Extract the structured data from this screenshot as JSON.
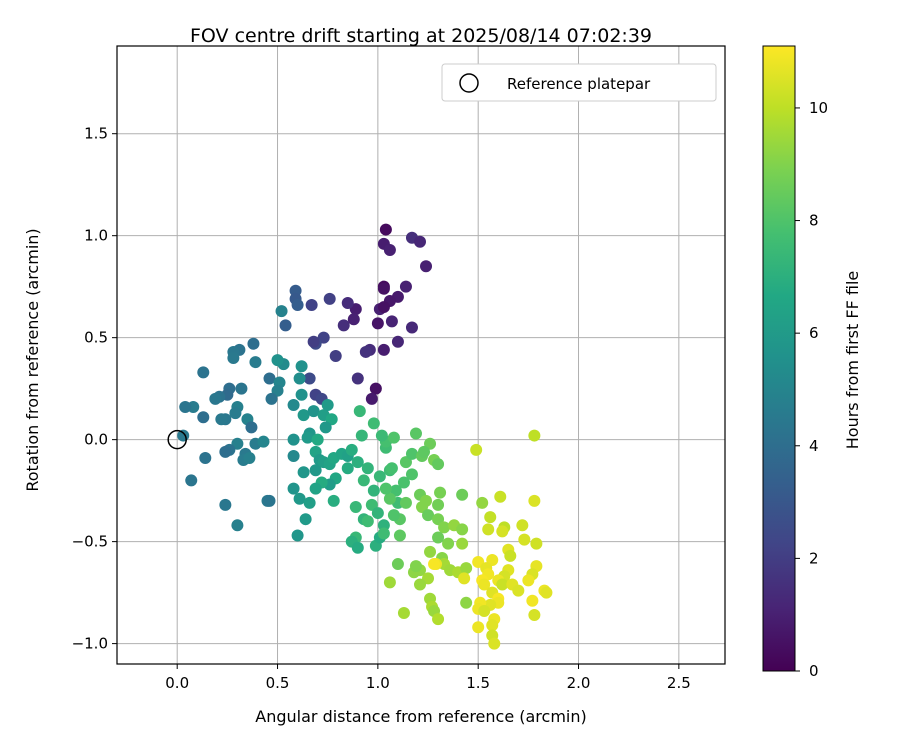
{
  "chart_data": {
    "type": "scatter",
    "title": "FOV centre drift starting at 2025/08/14 07:02:39",
    "xlabel": "Angular distance from reference (arcmin)",
    "ylabel": "Rotation from reference (arcmin)",
    "xlim": [
      -0.3,
      2.73
    ],
    "ylim": [
      -1.1,
      1.93
    ],
    "xticks": [
      0.0,
      0.5,
      1.0,
      1.5,
      2.0,
      2.5
    ],
    "xtick_labels": [
      "0.0",
      "0.5",
      "1.0",
      "1.5",
      "2.0",
      "2.5"
    ],
    "yticks": [
      -1.0,
      -0.5,
      0.0,
      0.5,
      1.0,
      1.5
    ],
    "ytick_labels": [
      "−1.0",
      "−0.5",
      "0.0",
      "0.5",
      "1.0",
      "1.5"
    ],
    "grid": true,
    "legend": {
      "placement": "top-right",
      "entries": [
        "Reference platepar"
      ]
    },
    "reference_point": {
      "x": 0.0,
      "y": 0.0,
      "marker": "open-circle"
    },
    "colorbar": {
      "label": "Hours from first FF file",
      "range": [
        0,
        11.1
      ],
      "ticks": [
        0,
        2,
        4,
        6,
        8,
        10
      ],
      "tick_labels": [
        "0",
        "2",
        "4",
        "6",
        "8",
        "10"
      ],
      "colormap": "viridis"
    },
    "points": [
      {
        "x": 1.04,
        "y": 1.03,
        "h": 0.3
      },
      {
        "x": 1.03,
        "y": 0.96,
        "h": 0.9
      },
      {
        "x": 1.06,
        "y": 0.93,
        "h": 1.0
      },
      {
        "x": 1.17,
        "y": 0.99,
        "h": 1.5
      },
      {
        "x": 1.21,
        "y": 0.97,
        "h": 1.2
      },
      {
        "x": 1.24,
        "y": 0.85,
        "h": 1.0
      },
      {
        "x": 1.03,
        "y": 0.75,
        "h": 0.3
      },
      {
        "x": 1.03,
        "y": 0.74,
        "h": 0.5
      },
      {
        "x": 1.1,
        "y": 0.7,
        "h": 0.8
      },
      {
        "x": 1.14,
        "y": 0.75,
        "h": 1.0
      },
      {
        "x": 1.06,
        "y": 0.68,
        "h": 0.7
      },
      {
        "x": 1.01,
        "y": 0.64,
        "h": 1.0
      },
      {
        "x": 1.03,
        "y": 0.65,
        "h": 0.5
      },
      {
        "x": 1.0,
        "y": 0.57,
        "h": 0.6
      },
      {
        "x": 1.07,
        "y": 0.58,
        "h": 1.1
      },
      {
        "x": 1.17,
        "y": 0.55,
        "h": 1.3
      },
      {
        "x": 1.1,
        "y": 0.48,
        "h": 1.2
      },
      {
        "x": 0.96,
        "y": 0.44,
        "h": 1.4
      },
      {
        "x": 0.94,
        "y": 0.43,
        "h": 1.6
      },
      {
        "x": 1.03,
        "y": 0.44,
        "h": 0.9
      },
      {
        "x": 0.89,
        "y": 0.64,
        "h": 0.9
      },
      {
        "x": 0.85,
        "y": 0.67,
        "h": 1.4
      },
      {
        "x": 0.83,
        "y": 0.56,
        "h": 1.5
      },
      {
        "x": 0.88,
        "y": 0.59,
        "h": 1.0
      },
      {
        "x": 0.99,
        "y": 0.25,
        "h": 0.5
      },
      {
        "x": 0.97,
        "y": 0.2,
        "h": 0.8
      },
      {
        "x": 0.9,
        "y": 0.3,
        "h": 1.6
      },
      {
        "x": 0.76,
        "y": 0.69,
        "h": 2.1
      },
      {
        "x": 0.67,
        "y": 0.66,
        "h": 2.2
      },
      {
        "x": 0.73,
        "y": 0.5,
        "h": 2.2
      },
      {
        "x": 0.69,
        "y": 0.47,
        "h": 2.5
      },
      {
        "x": 0.68,
        "y": 0.48,
        "h": 2.0
      },
      {
        "x": 0.79,
        "y": 0.41,
        "h": 2.0
      },
      {
        "x": 0.59,
        "y": 0.73,
        "h": 3.2
      },
      {
        "x": 0.59,
        "y": 0.69,
        "h": 3.1
      },
      {
        "x": 0.6,
        "y": 0.66,
        "h": 3.3
      },
      {
        "x": 0.54,
        "y": 0.56,
        "h": 3.3
      },
      {
        "x": 0.52,
        "y": 0.63,
        "h": 4.9
      },
      {
        "x": 0.66,
        "y": 0.3,
        "h": 2.5
      },
      {
        "x": 0.69,
        "y": 0.22,
        "h": 2.2
      },
      {
        "x": 0.72,
        "y": 0.2,
        "h": 2.4
      },
      {
        "x": 0.38,
        "y": 0.47,
        "h": 4.0
      },
      {
        "x": 0.31,
        "y": 0.44,
        "h": 4.2
      },
      {
        "x": 0.28,
        "y": 0.43,
        "h": 4.4
      },
      {
        "x": 0.28,
        "y": 0.4,
        "h": 4.5
      },
      {
        "x": 0.39,
        "y": 0.38,
        "h": 4.6
      },
      {
        "x": 0.46,
        "y": 0.3,
        "h": 4.0
      },
      {
        "x": 0.51,
        "y": 0.28,
        "h": 5.0
      },
      {
        "x": 0.5,
        "y": 0.24,
        "h": 4.8
      },
      {
        "x": 0.47,
        "y": 0.2,
        "h": 4.2
      },
      {
        "x": 0.32,
        "y": 0.25,
        "h": 4.3
      },
      {
        "x": 0.26,
        "y": 0.25,
        "h": 4.0
      },
      {
        "x": 0.25,
        "y": 0.22,
        "h": 3.8
      },
      {
        "x": 0.21,
        "y": 0.21,
        "h": 4.2
      },
      {
        "x": 0.19,
        "y": 0.2,
        "h": 4.4
      },
      {
        "x": 0.13,
        "y": 0.33,
        "h": 4.2
      },
      {
        "x": 0.08,
        "y": 0.16,
        "h": 4.6
      },
      {
        "x": 0.04,
        "y": 0.16,
        "h": 4.3
      },
      {
        "x": 0.13,
        "y": 0.11,
        "h": 4.0
      },
      {
        "x": 0.03,
        "y": 0.02,
        "h": 4.5
      },
      {
        "x": 0.24,
        "y": 0.1,
        "h": 4.4
      },
      {
        "x": 0.3,
        "y": 0.16,
        "h": 4.8
      },
      {
        "x": 0.29,
        "y": 0.13,
        "h": 4.6
      },
      {
        "x": 0.35,
        "y": 0.1,
        "h": 4.9
      },
      {
        "x": 0.37,
        "y": 0.06,
        "h": 4.0
      },
      {
        "x": 0.3,
        "y": -0.02,
        "h": 4.8
      },
      {
        "x": 0.34,
        "y": -0.07,
        "h": 4.5
      },
      {
        "x": 0.26,
        "y": -0.05,
        "h": 4.2
      },
      {
        "x": 0.24,
        "y": -0.06,
        "h": 4.0
      },
      {
        "x": 0.33,
        "y": -0.1,
        "h": 4.6
      },
      {
        "x": 0.36,
        "y": -0.09,
        "h": 4.8
      },
      {
        "x": 0.39,
        "y": -0.02,
        "h": 4.6
      },
      {
        "x": 0.43,
        "y": -0.01,
        "h": 5.0
      },
      {
        "x": 0.14,
        "y": -0.09,
        "h": 4.2
      },
      {
        "x": 0.07,
        "y": -0.2,
        "h": 4.3
      },
      {
        "x": 0.24,
        "y": -0.32,
        "h": 4.4
      },
      {
        "x": 0.3,
        "y": -0.42,
        "h": 4.8
      },
      {
        "x": 0.45,
        "y": -0.3,
        "h": 4.5
      },
      {
        "x": 0.46,
        "y": -0.3,
        "h": 4.3
      },
      {
        "x": 0.22,
        "y": 0.1,
        "h": 4.5
      },
      {
        "x": 0.53,
        "y": 0.37,
        "h": 5.3
      },
      {
        "x": 0.5,
        "y": 0.39,
        "h": 5.6
      },
      {
        "x": 0.62,
        "y": 0.36,
        "h": 5.6
      },
      {
        "x": 0.61,
        "y": 0.3,
        "h": 5.4
      },
      {
        "x": 0.58,
        "y": 0.17,
        "h": 5.2
      },
      {
        "x": 0.62,
        "y": 0.22,
        "h": 5.6
      },
      {
        "x": 0.63,
        "y": 0.12,
        "h": 5.9
      },
      {
        "x": 0.68,
        "y": 0.14,
        "h": 5.7
      },
      {
        "x": 0.73,
        "y": 0.12,
        "h": 6.2
      },
      {
        "x": 0.75,
        "y": 0.17,
        "h": 6.0
      },
      {
        "x": 0.77,
        "y": 0.1,
        "h": 6.6
      },
      {
        "x": 0.74,
        "y": 0.06,
        "h": 5.9
      },
      {
        "x": 0.66,
        "y": 0.03,
        "h": 5.8
      },
      {
        "x": 0.65,
        "y": 0.01,
        "h": 6.0
      },
      {
        "x": 0.7,
        "y": 0.0,
        "h": 6.7
      },
      {
        "x": 0.58,
        "y": 0.0,
        "h": 5.6
      },
      {
        "x": 0.58,
        "y": -0.08,
        "h": 5.2
      },
      {
        "x": 0.63,
        "y": -0.16,
        "h": 5.8
      },
      {
        "x": 0.69,
        "y": -0.06,
        "h": 6.4
      },
      {
        "x": 0.71,
        "y": -0.1,
        "h": 6.0
      },
      {
        "x": 0.69,
        "y": -0.15,
        "h": 5.9
      },
      {
        "x": 0.73,
        "y": -0.11,
        "h": 6.2
      },
      {
        "x": 0.76,
        "y": -0.12,
        "h": 6.4
      },
      {
        "x": 0.78,
        "y": -0.09,
        "h": 6.6
      },
      {
        "x": 0.82,
        "y": -0.07,
        "h": 6.5
      },
      {
        "x": 0.85,
        "y": -0.08,
        "h": 6.3
      },
      {
        "x": 0.79,
        "y": -0.19,
        "h": 6.6
      },
      {
        "x": 0.76,
        "y": -0.22,
        "h": 6.1
      },
      {
        "x": 0.72,
        "y": -0.21,
        "h": 6.8
      },
      {
        "x": 0.69,
        "y": -0.24,
        "h": 6.4
      },
      {
        "x": 0.58,
        "y": -0.24,
        "h": 5.7
      },
      {
        "x": 0.61,
        "y": -0.29,
        "h": 5.9
      },
      {
        "x": 0.66,
        "y": -0.31,
        "h": 6.2
      },
      {
        "x": 0.64,
        "y": -0.39,
        "h": 6.0
      },
      {
        "x": 0.6,
        "y": -0.47,
        "h": 5.8
      },
      {
        "x": 0.78,
        "y": -0.3,
        "h": 6.9
      },
      {
        "x": 0.85,
        "y": -0.14,
        "h": 6.8
      },
      {
        "x": 0.91,
        "y": 0.14,
        "h": 7.4
      },
      {
        "x": 0.98,
        "y": 0.08,
        "h": 7.6
      },
      {
        "x": 0.92,
        "y": 0.02,
        "h": 7.3
      },
      {
        "x": 0.87,
        "y": -0.05,
        "h": 6.9
      },
      {
        "x": 0.9,
        "y": -0.11,
        "h": 7.0
      },
      {
        "x": 0.95,
        "y": -0.14,
        "h": 7.2
      },
      {
        "x": 0.93,
        "y": -0.2,
        "h": 7.4
      },
      {
        "x": 0.98,
        "y": -0.25,
        "h": 7.2
      },
      {
        "x": 0.97,
        "y": -0.32,
        "h": 7.6
      },
      {
        "x": 0.89,
        "y": -0.33,
        "h": 7.4
      },
      {
        "x": 0.93,
        "y": -0.39,
        "h": 7.2
      },
      {
        "x": 0.95,
        "y": -0.4,
        "h": 7.6
      },
      {
        "x": 0.89,
        "y": -0.48,
        "h": 7.4
      },
      {
        "x": 0.87,
        "y": -0.5,
        "h": 7.0
      },
      {
        "x": 0.9,
        "y": -0.53,
        "h": 6.8
      },
      {
        "x": 0.99,
        "y": -0.52,
        "h": 7.0
      },
      {
        "x": 1.01,
        "y": -0.48,
        "h": 6.8
      },
      {
        "x": 1.03,
        "y": -0.42,
        "h": 7.1
      },
      {
        "x": 1.04,
        "y": -0.04,
        "h": 7.6
      },
      {
        "x": 1.04,
        "y": -0.01,
        "h": 7.8
      },
      {
        "x": 1.02,
        "y": 0.02,
        "h": 7.5
      },
      {
        "x": 1.08,
        "y": 0.01,
        "h": 8.0
      },
      {
        "x": 1.14,
        "y": -0.11,
        "h": 8.2
      },
      {
        "x": 1.17,
        "y": -0.07,
        "h": 8.0
      },
      {
        "x": 1.19,
        "y": 0.03,
        "h": 8.2
      },
      {
        "x": 1.22,
        "y": -0.08,
        "h": 8.4
      },
      {
        "x": 1.26,
        "y": -0.02,
        "h": 8.6
      },
      {
        "x": 1.28,
        "y": -0.1,
        "h": 8.8
      },
      {
        "x": 1.3,
        "y": -0.12,
        "h": 8.4
      },
      {
        "x": 1.23,
        "y": -0.06,
        "h": 8.3
      },
      {
        "x": 1.17,
        "y": -0.17,
        "h": 8.0
      },
      {
        "x": 1.13,
        "y": -0.21,
        "h": 7.9
      },
      {
        "x": 1.09,
        "y": -0.25,
        "h": 7.8
      },
      {
        "x": 1.1,
        "y": -0.31,
        "h": 7.6
      },
      {
        "x": 1.06,
        "y": -0.29,
        "h": 8.2
      },
      {
        "x": 1.14,
        "y": -0.31,
        "h": 8.4
      },
      {
        "x": 1.11,
        "y": -0.39,
        "h": 8.2
      },
      {
        "x": 1.08,
        "y": -0.37,
        "h": 8.0
      },
      {
        "x": 1.11,
        "y": -0.47,
        "h": 8.3
      },
      {
        "x": 1.21,
        "y": -0.27,
        "h": 8.6
      },
      {
        "x": 1.24,
        "y": -0.3,
        "h": 9.0
      },
      {
        "x": 1.3,
        "y": -0.32,
        "h": 8.7
      },
      {
        "x": 1.31,
        "y": -0.26,
        "h": 8.8
      },
      {
        "x": 1.22,
        "y": -0.33,
        "h": 9.0
      },
      {
        "x": 1.25,
        "y": -0.37,
        "h": 8.5
      },
      {
        "x": 1.3,
        "y": -0.39,
        "h": 8.8
      },
      {
        "x": 1.33,
        "y": -0.43,
        "h": 9.0
      },
      {
        "x": 1.38,
        "y": -0.42,
        "h": 9.3
      },
      {
        "x": 1.42,
        "y": -0.27,
        "h": 8.6
      },
      {
        "x": 1.42,
        "y": -0.44,
        "h": 9.1
      },
      {
        "x": 1.42,
        "y": -0.51,
        "h": 9.4
      },
      {
        "x": 1.35,
        "y": -0.51,
        "h": 9.0
      },
      {
        "x": 1.3,
        "y": -0.48,
        "h": 8.6
      },
      {
        "x": 1.26,
        "y": -0.55,
        "h": 9.3
      },
      {
        "x": 1.32,
        "y": -0.58,
        "h": 9.1
      },
      {
        "x": 1.33,
        "y": -0.61,
        "h": 9.6
      },
      {
        "x": 1.36,
        "y": -0.64,
        "h": 9.5
      },
      {
        "x": 1.4,
        "y": -0.65,
        "h": 9.7
      },
      {
        "x": 1.44,
        "y": -0.63,
        "h": 9.4
      },
      {
        "x": 1.43,
        "y": -0.68,
        "h": 10.6
      },
      {
        "x": 1.44,
        "y": -0.8,
        "h": 9.2
      },
      {
        "x": 1.49,
        "y": -0.05,
        "h": 10.2
      },
      {
        "x": 1.52,
        "y": -0.31,
        "h": 9.3
      },
      {
        "x": 1.56,
        "y": -0.38,
        "h": 10.1
      },
      {
        "x": 1.55,
        "y": -0.44,
        "h": 10.3
      },
      {
        "x": 1.61,
        "y": -0.28,
        "h": 10.2
      },
      {
        "x": 1.63,
        "y": -0.43,
        "h": 10.0
      },
      {
        "x": 1.62,
        "y": -0.45,
        "h": 10.4
      },
      {
        "x": 1.72,
        "y": -0.42,
        "h": 10.3
      },
      {
        "x": 1.78,
        "y": -0.3,
        "h": 10.5
      },
      {
        "x": 1.78,
        "y": 0.02,
        "h": 10.0
      },
      {
        "x": 1.73,
        "y": -0.49,
        "h": 10.4
      },
      {
        "x": 1.65,
        "y": -0.54,
        "h": 10.6
      },
      {
        "x": 1.66,
        "y": -0.57,
        "h": 10.2
      },
      {
        "x": 1.79,
        "y": -0.51,
        "h": 10.3
      },
      {
        "x": 1.79,
        "y": -0.62,
        "h": 10.7
      },
      {
        "x": 1.77,
        "y": -0.66,
        "h": 10.5
      },
      {
        "x": 1.75,
        "y": -0.69,
        "h": 10.8
      },
      {
        "x": 1.65,
        "y": -0.64,
        "h": 10.6
      },
      {
        "x": 1.63,
        "y": -0.67,
        "h": 10.4
      },
      {
        "x": 1.6,
        "y": -0.69,
        "h": 10.8
      },
      {
        "x": 1.62,
        "y": -0.71,
        "h": 10.2
      },
      {
        "x": 1.67,
        "y": -0.71,
        "h": 10.6
      },
      {
        "x": 1.7,
        "y": -0.74,
        "h": 10.5
      },
      {
        "x": 1.83,
        "y": -0.74,
        "h": 10.8
      },
      {
        "x": 1.84,
        "y": -0.75,
        "h": 10.6
      },
      {
        "x": 1.77,
        "y": -0.79,
        "h": 10.9
      },
      {
        "x": 1.78,
        "y": -0.86,
        "h": 10.4
      },
      {
        "x": 1.57,
        "y": -0.59,
        "h": 10.8
      },
      {
        "x": 1.5,
        "y": -0.6,
        "h": 10.9
      },
      {
        "x": 1.54,
        "y": -0.63,
        "h": 10.7
      },
      {
        "x": 1.55,
        "y": -0.66,
        "h": 10.9
      },
      {
        "x": 1.52,
        "y": -0.69,
        "h": 11.0
      },
      {
        "x": 1.53,
        "y": -0.71,
        "h": 10.8
      },
      {
        "x": 1.57,
        "y": -0.75,
        "h": 10.6
      },
      {
        "x": 1.6,
        "y": -0.78,
        "h": 11.0
      },
      {
        "x": 1.6,
        "y": -0.8,
        "h": 10.8
      },
      {
        "x": 1.56,
        "y": -0.81,
        "h": 10.6
      },
      {
        "x": 1.51,
        "y": -0.8,
        "h": 10.9
      },
      {
        "x": 1.5,
        "y": -0.83,
        "h": 10.8
      },
      {
        "x": 1.53,
        "y": -0.84,
        "h": 10.4
      },
      {
        "x": 1.58,
        "y": -0.88,
        "h": 10.8
      },
      {
        "x": 1.57,
        "y": -0.91,
        "h": 10.6
      },
      {
        "x": 1.57,
        "y": -0.96,
        "h": 10.3
      },
      {
        "x": 1.58,
        "y": -1.0,
        "h": 10.5
      },
      {
        "x": 1.5,
        "y": -0.92,
        "h": 10.8
      },
      {
        "x": 1.29,
        "y": -0.61,
        "h": 10.8
      },
      {
        "x": 1.28,
        "y": -0.61,
        "h": 11.0
      },
      {
        "x": 1.21,
        "y": -0.64,
        "h": 9.3
      },
      {
        "x": 1.25,
        "y": -0.68,
        "h": 9.6
      },
      {
        "x": 1.21,
        "y": -0.71,
        "h": 9.4
      },
      {
        "x": 1.06,
        "y": -0.7,
        "h": 9.5
      },
      {
        "x": 1.13,
        "y": -0.85,
        "h": 9.6
      },
      {
        "x": 1.26,
        "y": -0.78,
        "h": 9.5
      },
      {
        "x": 1.27,
        "y": -0.82,
        "h": 9.7
      },
      {
        "x": 1.28,
        "y": -0.84,
        "h": 9.4
      },
      {
        "x": 1.3,
        "y": -0.88,
        "h": 9.8
      },
      {
        "x": 1.1,
        "y": -0.61,
        "h": 8.6
      },
      {
        "x": 1.18,
        "y": -0.65,
        "h": 9.2
      },
      {
        "x": 1.19,
        "y": -0.62,
        "h": 9.0
      },
      {
        "x": 1.03,
        "y": -0.46,
        "h": 7.6
      },
      {
        "x": 1.0,
        "y": -0.36,
        "h": 7.2
      },
      {
        "x": 1.04,
        "y": -0.24,
        "h": 8.0
      },
      {
        "x": 1.06,
        "y": -0.15,
        "h": 7.6
      },
      {
        "x": 1.07,
        "y": -0.14,
        "h": 7.8
      },
      {
        "x": 1.01,
        "y": -0.18,
        "h": 7.4
      }
    ]
  }
}
